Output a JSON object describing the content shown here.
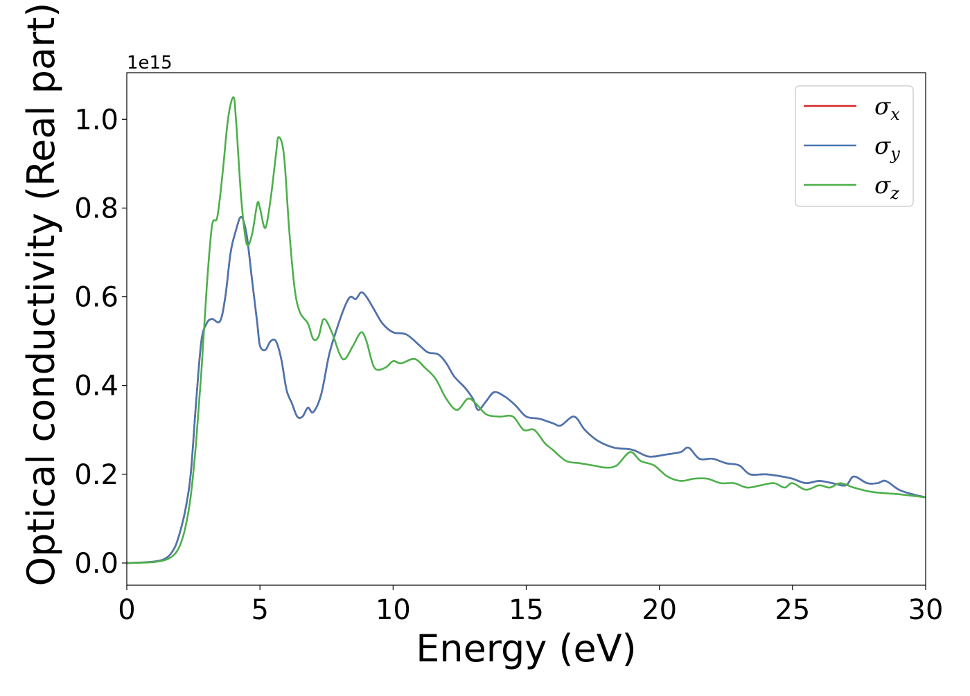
{
  "chart_data": {
    "type": "line",
    "title": "",
    "xlabel": "Energy (eV)",
    "ylabel": "Optical conductivity (Real part)",
    "y_offset_label": "1e15",
    "xlim": [
      0,
      30
    ],
    "ylim": [
      -0.05,
      1.105
    ],
    "x_ticks": [
      0,
      5,
      10,
      15,
      20,
      25,
      30
    ],
    "x_tick_labels": [
      "0",
      "5",
      "10",
      "15",
      "20",
      "25",
      "30"
    ],
    "y_ticks": [
      0.0,
      0.2,
      0.4,
      0.6,
      0.8,
      1.0
    ],
    "y_tick_labels": [
      "0.0",
      "0.2",
      "0.4",
      "0.6",
      "0.8",
      "1.0"
    ],
    "grid": false,
    "legend_position": "top-right",
    "series": [
      {
        "name": "σx",
        "symbol": "σ",
        "subscript": "x",
        "color": "#d62728",
        "points": [
          [
            0,
            0
          ],
          [
            1,
            0.003
          ],
          [
            1.5,
            0.012
          ],
          [
            1.8,
            0.035
          ],
          [
            2.0,
            0.07
          ],
          [
            2.2,
            0.12
          ],
          [
            2.4,
            0.2
          ],
          [
            2.6,
            0.36
          ],
          [
            2.8,
            0.5
          ],
          [
            3.0,
            0.54
          ],
          [
            3.2,
            0.55
          ],
          [
            3.5,
            0.545
          ],
          [
            3.7,
            0.6
          ],
          [
            3.9,
            0.7
          ],
          [
            4.1,
            0.75
          ],
          [
            4.3,
            0.78
          ],
          [
            4.5,
            0.74
          ],
          [
            4.7,
            0.64
          ],
          [
            4.9,
            0.54
          ],
          [
            5.0,
            0.49
          ],
          [
            5.2,
            0.48
          ],
          [
            5.4,
            0.5
          ],
          [
            5.6,
            0.5
          ],
          [
            5.8,
            0.46
          ],
          [
            6.0,
            0.39
          ],
          [
            6.2,
            0.36
          ],
          [
            6.4,
            0.33
          ],
          [
            6.6,
            0.33
          ],
          [
            6.8,
            0.35
          ],
          [
            7.0,
            0.34
          ],
          [
            7.3,
            0.38
          ],
          [
            7.6,
            0.47
          ],
          [
            7.9,
            0.53
          ],
          [
            8.2,
            0.58
          ],
          [
            8.4,
            0.6
          ],
          [
            8.6,
            0.595
          ],
          [
            8.8,
            0.61
          ],
          [
            9.0,
            0.6
          ],
          [
            9.3,
            0.57
          ],
          [
            9.6,
            0.54
          ],
          [
            10.0,
            0.52
          ],
          [
            10.5,
            0.515
          ],
          [
            11.0,
            0.49
          ],
          [
            11.3,
            0.475
          ],
          [
            11.7,
            0.47
          ],
          [
            12.0,
            0.45
          ],
          [
            12.3,
            0.42
          ],
          [
            12.7,
            0.395
          ],
          [
            13.0,
            0.37
          ],
          [
            13.2,
            0.345
          ],
          [
            13.5,
            0.365
          ],
          [
            13.8,
            0.385
          ],
          [
            14.2,
            0.375
          ],
          [
            14.6,
            0.355
          ],
          [
            15.0,
            0.33
          ],
          [
            15.5,
            0.325
          ],
          [
            16.0,
            0.315
          ],
          [
            16.3,
            0.31
          ],
          [
            16.8,
            0.33
          ],
          [
            17.2,
            0.3
          ],
          [
            17.7,
            0.275
          ],
          [
            18.3,
            0.26
          ],
          [
            19.0,
            0.255
          ],
          [
            19.6,
            0.24
          ],
          [
            20.3,
            0.245
          ],
          [
            20.8,
            0.25
          ],
          [
            21.1,
            0.26
          ],
          [
            21.5,
            0.235
          ],
          [
            22.0,
            0.235
          ],
          [
            22.5,
            0.225
          ],
          [
            23.0,
            0.22
          ],
          [
            23.4,
            0.2
          ],
          [
            24.0,
            0.2
          ],
          [
            24.6,
            0.195
          ],
          [
            25.0,
            0.19
          ],
          [
            25.5,
            0.18
          ],
          [
            26.0,
            0.185
          ],
          [
            26.5,
            0.18
          ],
          [
            27.0,
            0.175
          ],
          [
            27.3,
            0.195
          ],
          [
            27.8,
            0.18
          ],
          [
            28.2,
            0.18
          ],
          [
            28.5,
            0.185
          ],
          [
            29.0,
            0.165
          ],
          [
            29.5,
            0.155
          ],
          [
            30.0,
            0.148
          ]
        ]
      },
      {
        "name": "σy",
        "symbol": "σ",
        "subscript": "y",
        "color": "#4a76b0",
        "points": [
          [
            0,
            0
          ],
          [
            1,
            0.003
          ],
          [
            1.5,
            0.012
          ],
          [
            1.8,
            0.035
          ],
          [
            2.0,
            0.07
          ],
          [
            2.2,
            0.12
          ],
          [
            2.4,
            0.2
          ],
          [
            2.6,
            0.36
          ],
          [
            2.8,
            0.5
          ],
          [
            3.0,
            0.54
          ],
          [
            3.2,
            0.55
          ],
          [
            3.5,
            0.545
          ],
          [
            3.7,
            0.6
          ],
          [
            3.9,
            0.7
          ],
          [
            4.1,
            0.75
          ],
          [
            4.3,
            0.78
          ],
          [
            4.5,
            0.74
          ],
          [
            4.7,
            0.64
          ],
          [
            4.9,
            0.54
          ],
          [
            5.0,
            0.49
          ],
          [
            5.2,
            0.48
          ],
          [
            5.4,
            0.5
          ],
          [
            5.6,
            0.5
          ],
          [
            5.8,
            0.46
          ],
          [
            6.0,
            0.39
          ],
          [
            6.2,
            0.36
          ],
          [
            6.4,
            0.33
          ],
          [
            6.6,
            0.33
          ],
          [
            6.8,
            0.35
          ],
          [
            7.0,
            0.34
          ],
          [
            7.3,
            0.38
          ],
          [
            7.6,
            0.47
          ],
          [
            7.9,
            0.53
          ],
          [
            8.2,
            0.58
          ],
          [
            8.4,
            0.6
          ],
          [
            8.6,
            0.595
          ],
          [
            8.8,
            0.61
          ],
          [
            9.0,
            0.6
          ],
          [
            9.3,
            0.57
          ],
          [
            9.6,
            0.54
          ],
          [
            10.0,
            0.52
          ],
          [
            10.5,
            0.515
          ],
          [
            11.0,
            0.49
          ],
          [
            11.3,
            0.475
          ],
          [
            11.7,
            0.47
          ],
          [
            12.0,
            0.45
          ],
          [
            12.3,
            0.42
          ],
          [
            12.7,
            0.395
          ],
          [
            13.0,
            0.37
          ],
          [
            13.2,
            0.345
          ],
          [
            13.5,
            0.365
          ],
          [
            13.8,
            0.385
          ],
          [
            14.2,
            0.375
          ],
          [
            14.6,
            0.355
          ],
          [
            15.0,
            0.33
          ],
          [
            15.5,
            0.325
          ],
          [
            16.0,
            0.315
          ],
          [
            16.3,
            0.31
          ],
          [
            16.8,
            0.33
          ],
          [
            17.2,
            0.3
          ],
          [
            17.7,
            0.275
          ],
          [
            18.3,
            0.26
          ],
          [
            19.0,
            0.255
          ],
          [
            19.6,
            0.24
          ],
          [
            20.3,
            0.245
          ],
          [
            20.8,
            0.25
          ],
          [
            21.1,
            0.26
          ],
          [
            21.5,
            0.235
          ],
          [
            22.0,
            0.235
          ],
          [
            22.5,
            0.225
          ],
          [
            23.0,
            0.22
          ],
          [
            23.4,
            0.2
          ],
          [
            24.0,
            0.2
          ],
          [
            24.6,
            0.195
          ],
          [
            25.0,
            0.19
          ],
          [
            25.5,
            0.18
          ],
          [
            26.0,
            0.185
          ],
          [
            26.5,
            0.18
          ],
          [
            27.0,
            0.175
          ],
          [
            27.3,
            0.195
          ],
          [
            27.8,
            0.18
          ],
          [
            28.2,
            0.18
          ],
          [
            28.5,
            0.185
          ],
          [
            29.0,
            0.165
          ],
          [
            29.5,
            0.155
          ],
          [
            30.0,
            0.148
          ]
        ]
      },
      {
        "name": "σz",
        "symbol": "σ",
        "subscript": "z",
        "color": "#4daf4a",
        "points": [
          [
            0,
            0
          ],
          [
            1,
            0.002
          ],
          [
            1.5,
            0.008
          ],
          [
            1.8,
            0.02
          ],
          [
            2.0,
            0.04
          ],
          [
            2.2,
            0.08
          ],
          [
            2.4,
            0.15
          ],
          [
            2.6,
            0.27
          ],
          [
            2.8,
            0.43
          ],
          [
            3.0,
            0.62
          ],
          [
            3.2,
            0.76
          ],
          [
            3.4,
            0.78
          ],
          [
            3.6,
            0.88
          ],
          [
            3.8,
            1.0
          ],
          [
            4.0,
            1.05
          ],
          [
            4.1,
            1.0
          ],
          [
            4.3,
            0.82
          ],
          [
            4.5,
            0.72
          ],
          [
            4.7,
            0.74
          ],
          [
            4.9,
            0.81
          ],
          [
            5.0,
            0.8
          ],
          [
            5.2,
            0.755
          ],
          [
            5.4,
            0.82
          ],
          [
            5.6,
            0.92
          ],
          [
            5.7,
            0.96
          ],
          [
            5.9,
            0.92
          ],
          [
            6.1,
            0.75
          ],
          [
            6.3,
            0.62
          ],
          [
            6.5,
            0.565
          ],
          [
            6.8,
            0.54
          ],
          [
            7.0,
            0.505
          ],
          [
            7.2,
            0.51
          ],
          [
            7.4,
            0.55
          ],
          [
            7.7,
            0.52
          ],
          [
            8.0,
            0.47
          ],
          [
            8.2,
            0.46
          ],
          [
            8.5,
            0.49
          ],
          [
            8.8,
            0.52
          ],
          [
            9.0,
            0.5
          ],
          [
            9.3,
            0.44
          ],
          [
            9.7,
            0.44
          ],
          [
            10.0,
            0.455
          ],
          [
            10.3,
            0.45
          ],
          [
            10.8,
            0.46
          ],
          [
            11.2,
            0.44
          ],
          [
            11.6,
            0.415
          ],
          [
            12.0,
            0.37
          ],
          [
            12.4,
            0.345
          ],
          [
            12.8,
            0.37
          ],
          [
            13.1,
            0.36
          ],
          [
            13.5,
            0.335
          ],
          [
            14.0,
            0.33
          ],
          [
            14.5,
            0.33
          ],
          [
            14.9,
            0.3
          ],
          [
            15.3,
            0.3
          ],
          [
            15.7,
            0.27
          ],
          [
            16.0,
            0.255
          ],
          [
            16.5,
            0.23
          ],
          [
            17.0,
            0.225
          ],
          [
            17.5,
            0.22
          ],
          [
            18.0,
            0.215
          ],
          [
            18.4,
            0.22
          ],
          [
            18.9,
            0.25
          ],
          [
            19.3,
            0.23
          ],
          [
            19.8,
            0.22
          ],
          [
            20.3,
            0.195
          ],
          [
            20.8,
            0.185
          ],
          [
            21.3,
            0.19
          ],
          [
            21.8,
            0.19
          ],
          [
            22.3,
            0.18
          ],
          [
            22.8,
            0.18
          ],
          [
            23.3,
            0.17
          ],
          [
            23.8,
            0.175
          ],
          [
            24.3,
            0.18
          ],
          [
            24.7,
            0.17
          ],
          [
            25.0,
            0.18
          ],
          [
            25.5,
            0.165
          ],
          [
            26.0,
            0.175
          ],
          [
            26.4,
            0.17
          ],
          [
            26.8,
            0.18
          ],
          [
            27.3,
            0.17
          ],
          [
            28.0,
            0.16
          ],
          [
            29.0,
            0.155
          ],
          [
            30.0,
            0.148
          ]
        ]
      }
    ]
  }
}
